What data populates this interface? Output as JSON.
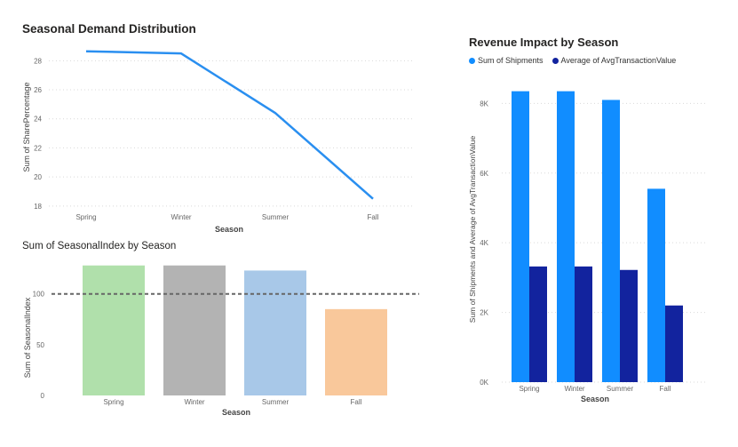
{
  "chart_data": [
    {
      "type": "line",
      "title": "Seasonal Demand Distribution",
      "xlabel": "Season",
      "ylabel": "Sum of SharePercentage",
      "categories": [
        "Spring",
        "Winter",
        "Summer",
        "Fall"
      ],
      "series": [
        {
          "values": [
            28.65,
            28.5,
            24.4,
            18.5
          ],
          "color": "#2a8ff0"
        }
      ],
      "ylim": [
        17.5,
        29
      ],
      "yticks": [
        18,
        20,
        22,
        24,
        26,
        28
      ],
      "grid": true
    },
    {
      "type": "bar",
      "title": "Sum of SeasonalIndex by Season",
      "xlabel": "Season",
      "ylabel": "Sum of SeasonalIndex",
      "categories": [
        "Spring",
        "Winter",
        "Summer",
        "Fall"
      ],
      "values": [
        128,
        128,
        123,
        85
      ],
      "colors": [
        "#b0e0ab",
        "#b3b3b3",
        "#a8c8e8",
        "#f9c89b"
      ],
      "reference_line": 100,
      "ylim": [
        0,
        140
      ],
      "yticks": [
        0,
        50,
        100
      ],
      "grid": false
    },
    {
      "type": "bar",
      "title": "Revenue Impact by Season",
      "xlabel": "Season",
      "ylabel": "Sum of Shipments and Average of AvgTransactionValue",
      "categories": [
        "Spring",
        "Winter",
        "Summer",
        "Fall"
      ],
      "series": [
        {
          "name": "Sum of Shipments",
          "values": [
            8350,
            8350,
            8100,
            5550
          ],
          "color": "#118dff"
        },
        {
          "name": "Average of AvgTransactionValue",
          "values": [
            3320,
            3320,
            3220,
            2200
          ],
          "color": "#12239e"
        }
      ],
      "ylim": [
        0,
        8800
      ],
      "yticks": [
        0,
        2000,
        4000,
        6000,
        8000
      ],
      "ytick_labels": [
        "0K",
        "2K",
        "4K",
        "6K",
        "8K"
      ],
      "legend": "top-left",
      "grid": true
    }
  ]
}
